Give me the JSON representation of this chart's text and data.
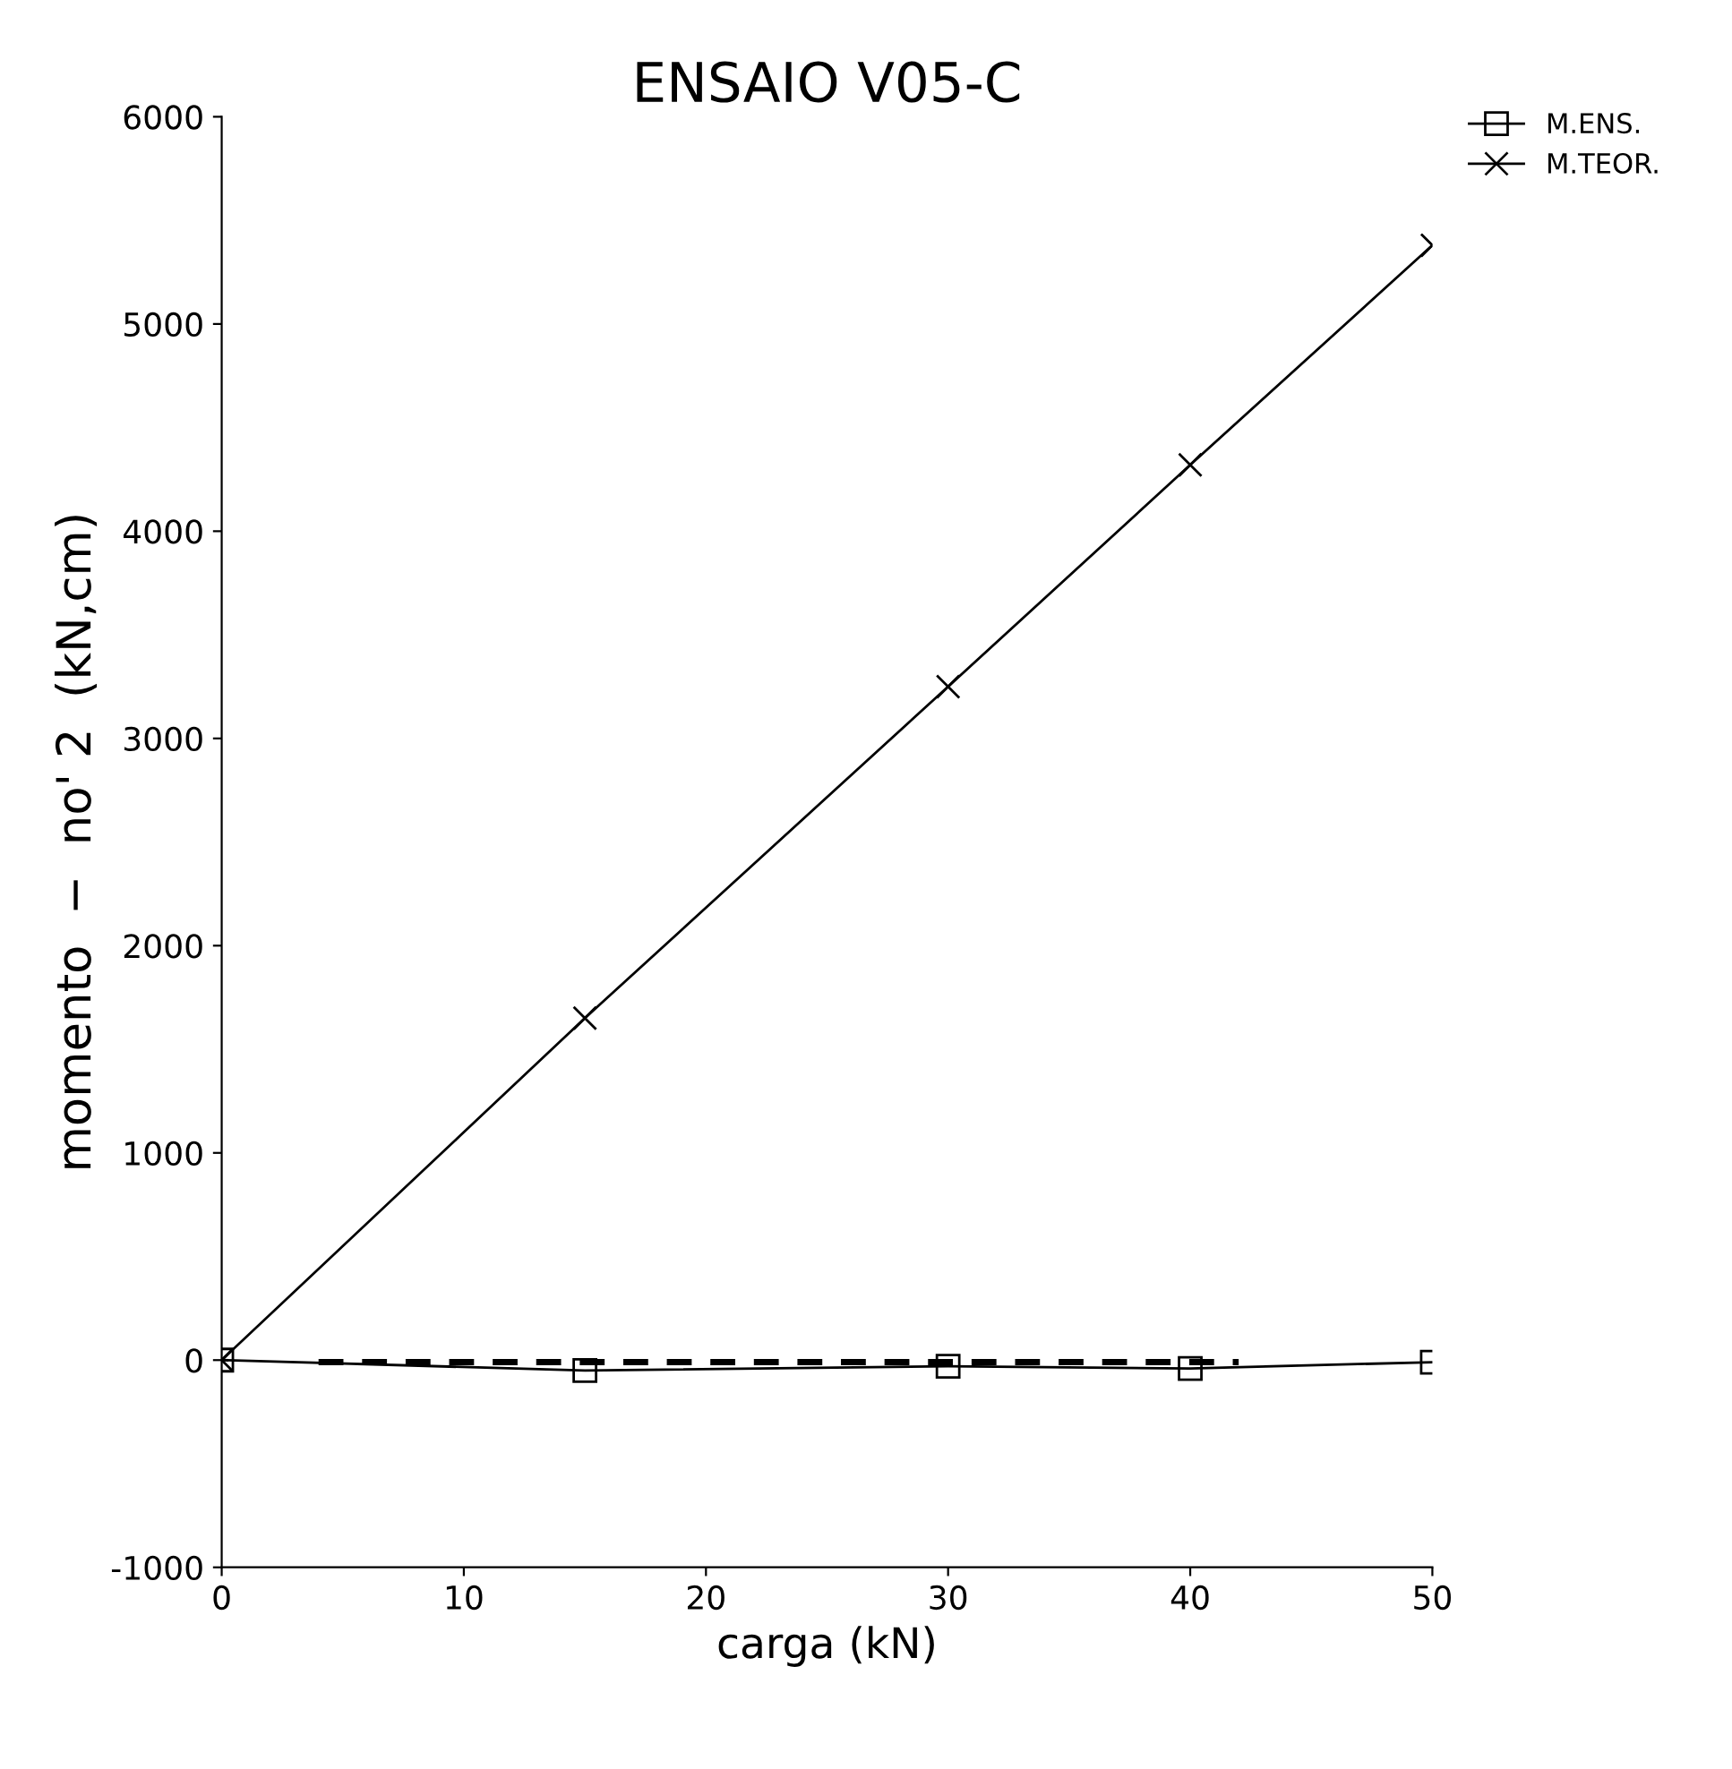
{
  "chart_data": {
    "type": "line",
    "title": "ENSAIO V05-C",
    "xlabel": "carga (kN)",
    "ylabel": "momento  −  no' 2  (kN,cm)",
    "xlim": [
      0,
      50
    ],
    "xticks": [
      0,
      10,
      20,
      30,
      40,
      50
    ],
    "ylim": [
      -1000,
      6000
    ],
    "yticks": [
      -1000,
      0,
      1000,
      2000,
      3000,
      4000,
      5000,
      6000
    ],
    "grid": false,
    "legend": "top right",
    "series": [
      {
        "name": "M.ENS.",
        "color": "#000000",
        "marker": "square",
        "line_style": "solid",
        "x": [
          0,
          15,
          30,
          40,
          50
        ],
        "values": [
          0,
          -50,
          -30,
          -40,
          -10
        ]
      },
      {
        "name": "M.TEOR.",
        "color": "#000000",
        "marker": "cross",
        "line_style": "solid",
        "x": [
          0,
          15,
          30,
          40,
          50
        ],
        "values": [
          0,
          1650,
          3250,
          4320,
          5380
        ]
      },
      {
        "color": "#000000",
        "marker": "none",
        "line_style": "dashed",
        "x": [
          4,
          42
        ],
        "values": [
          -10,
          -10
        ]
      }
    ]
  }
}
